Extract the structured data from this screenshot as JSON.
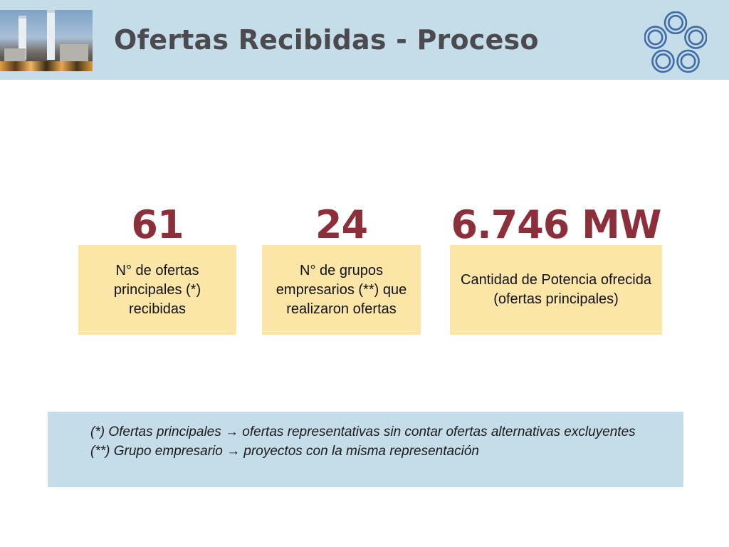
{
  "header": {
    "title": "Ofertas Recibidas - Proceso",
    "background_color": "#c5dde8",
    "photo_icon": "power-plant-photo",
    "logo_icon": "five-petal-logo"
  },
  "stats": [
    {
      "value": "61",
      "label": "N° de ofertas principales (*) recibidas"
    },
    {
      "value": "24",
      "label": "N° de grupos empresarios (**) que realizaron ofertas"
    },
    {
      "value": "6.746 MW",
      "label": "Cantidad de Potencia ofrecida (ofertas principales)"
    }
  ],
  "colors": {
    "value_text": "#8c2f3a",
    "label_box": "#fbe6a8",
    "notes_box": "#c5dde8",
    "title_text": "#4a4a4f"
  },
  "notes": {
    "line1_prefix": "(*) Ofertas principales ",
    "line1_text": "ofertas representativas sin contar ofertas alternativas excluyentes",
    "line2_prefix": "(**) Grupo empresario ",
    "line2_text": "proyectos con la misma representación",
    "arrow_icon": "arrow-right-icon"
  }
}
